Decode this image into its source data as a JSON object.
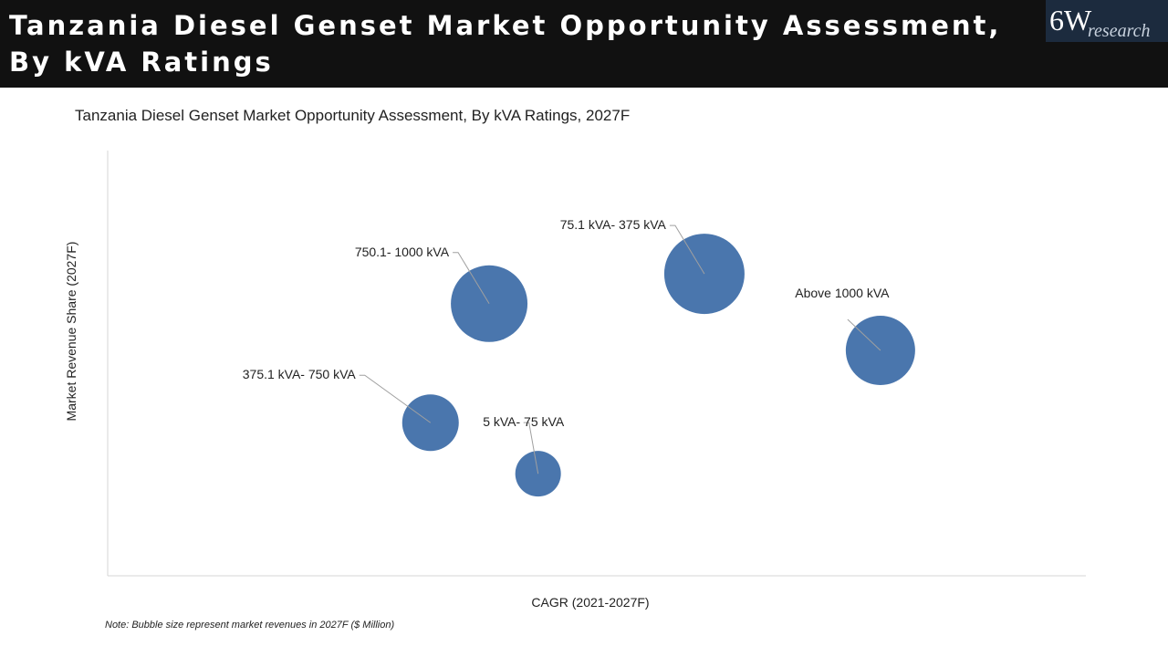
{
  "header": {
    "title": "Tanzania Diesel Genset Market Opportunity Assessment, By kVA Ratings",
    "logo_main": "6W",
    "logo_sub": "research"
  },
  "chart_data": {
    "type": "scatter",
    "subtype": "bubble",
    "title": "Tanzania Diesel Genset Market Opportunity Assessment, By kVA Ratings, 2027F",
    "xlabel": "CAGR (2021-2027F)",
    "ylabel": "Market Revenue Share (2027F)",
    "xlim": [
      0,
      100
    ],
    "ylim": [
      0,
      100
    ],
    "grid": false,
    "note": "Note: Bubble size represent market revenues in 2027F ($ Million)",
    "bubble_color": "#4a76ad",
    "series": [
      {
        "name": "750.1- 1000 kVA",
        "x": 39,
        "y": 64,
        "size": 42
      },
      {
        "name": "75.1 kVA- 375 kVA",
        "x": 61,
        "y": 71,
        "size": 44
      },
      {
        "name": "Above 1000 kVA",
        "x": 79,
        "y": 53,
        "size": 38
      },
      {
        "name": "375.1 kVA- 750 kVA",
        "x": 33,
        "y": 36,
        "size": 31
      },
      {
        "name": "5 kVA- 75 kVA",
        "x": 44,
        "y": 24,
        "size": 25
      }
    ]
  }
}
